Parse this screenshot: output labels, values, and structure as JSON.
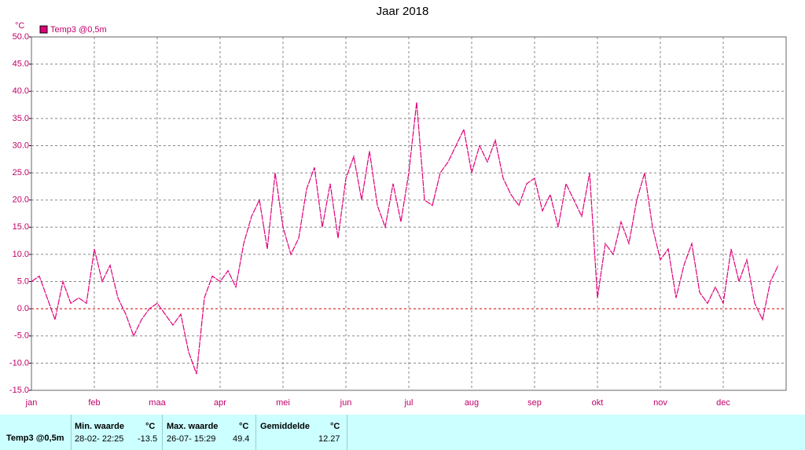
{
  "chart_data": {
    "type": "line",
    "title": "Jaar 2018",
    "y_unit": "°C",
    "categories": [
      "jan",
      null,
      null,
      null,
      null,
      null,
      null,
      null,
      "feb",
      null,
      null,
      null,
      null,
      null,
      null,
      null,
      "maa",
      null,
      null,
      null,
      null,
      null,
      null,
      null,
      "apr",
      null,
      null,
      null,
      null,
      null,
      null,
      null,
      "mei",
      null,
      null,
      null,
      null,
      null,
      null,
      null,
      "jun",
      null,
      null,
      null,
      null,
      null,
      null,
      null,
      "jul",
      null,
      null,
      null,
      null,
      null,
      null,
      null,
      "aug",
      null,
      null,
      null,
      null,
      null,
      null,
      null,
      "sep",
      null,
      null,
      null,
      null,
      null,
      null,
      null,
      "okt",
      null,
      null,
      null,
      null,
      null,
      null,
      null,
      "nov",
      null,
      null,
      null,
      null,
      null,
      null,
      null,
      "dec",
      null,
      null,
      null,
      null,
      null,
      null,
      null
    ],
    "series": [
      {
        "name": "Temp3 @0,5m",
        "color": "#e0007a",
        "values": [
          5,
          6,
          2,
          -2,
          5,
          1,
          2,
          1,
          11,
          5,
          8,
          2,
          -1,
          -5,
          -2,
          0,
          1,
          -1,
          -3,
          -1,
          -8,
          -12,
          2,
          6,
          5,
          7,
          4,
          12,
          17,
          20,
          11,
          25,
          15,
          10,
          13,
          22,
          26,
          15,
          23,
          13,
          24,
          28,
          20,
          29,
          19,
          15,
          23,
          16,
          25,
          38,
          20,
          19,
          25,
          27,
          30,
          33,
          25,
          30,
          27,
          31,
          24,
          21,
          19,
          23,
          24,
          18,
          21,
          15,
          23,
          20,
          17,
          25,
          2,
          12,
          10,
          16,
          12,
          20,
          25,
          15,
          9,
          11,
          2,
          8,
          12,
          3,
          1,
          4,
          1,
          11,
          5,
          9,
          1,
          -2,
          5,
          8
        ]
      }
    ],
    "ylim": [
      -15,
      50
    ],
    "yticks": [
      {
        "value": -15,
        "label": "-15.0"
      },
      {
        "value": -10,
        "label": "-10.0"
      },
      {
        "value": -5,
        "label": "-5.0"
      },
      {
        "value": 0,
        "label": "0.0"
      },
      {
        "value": 5,
        "label": "5.0"
      },
      {
        "value": 10,
        "label": "10.0"
      },
      {
        "value": 15,
        "label": "15.0"
      },
      {
        "value": 20,
        "label": "20.0"
      },
      {
        "value": 25,
        "label": "25.0"
      },
      {
        "value": 30,
        "label": "30.0"
      },
      {
        "value": 35,
        "label": "35.0"
      },
      {
        "value": 40,
        "label": "40.0"
      },
      {
        "value": 45,
        "label": "45.0"
      },
      {
        "value": 50,
        "label": "50.0"
      }
    ],
    "grid": true,
    "zero_line_color": "#cc0000",
    "legend": "top-left"
  },
  "stats_table": {
    "row_label": "Temp3 @0,5m",
    "min": {
      "header": "Min. waarde",
      "unit": "°C",
      "when": "28-02- 22:25",
      "value": "-13.5"
    },
    "max": {
      "header": "Max. waarde",
      "unit": "°C",
      "when": "26-07- 15:29",
      "value": "49.4"
    },
    "avg": {
      "header": "Gemiddelde",
      "unit": "°C",
      "value": "12.27"
    }
  }
}
